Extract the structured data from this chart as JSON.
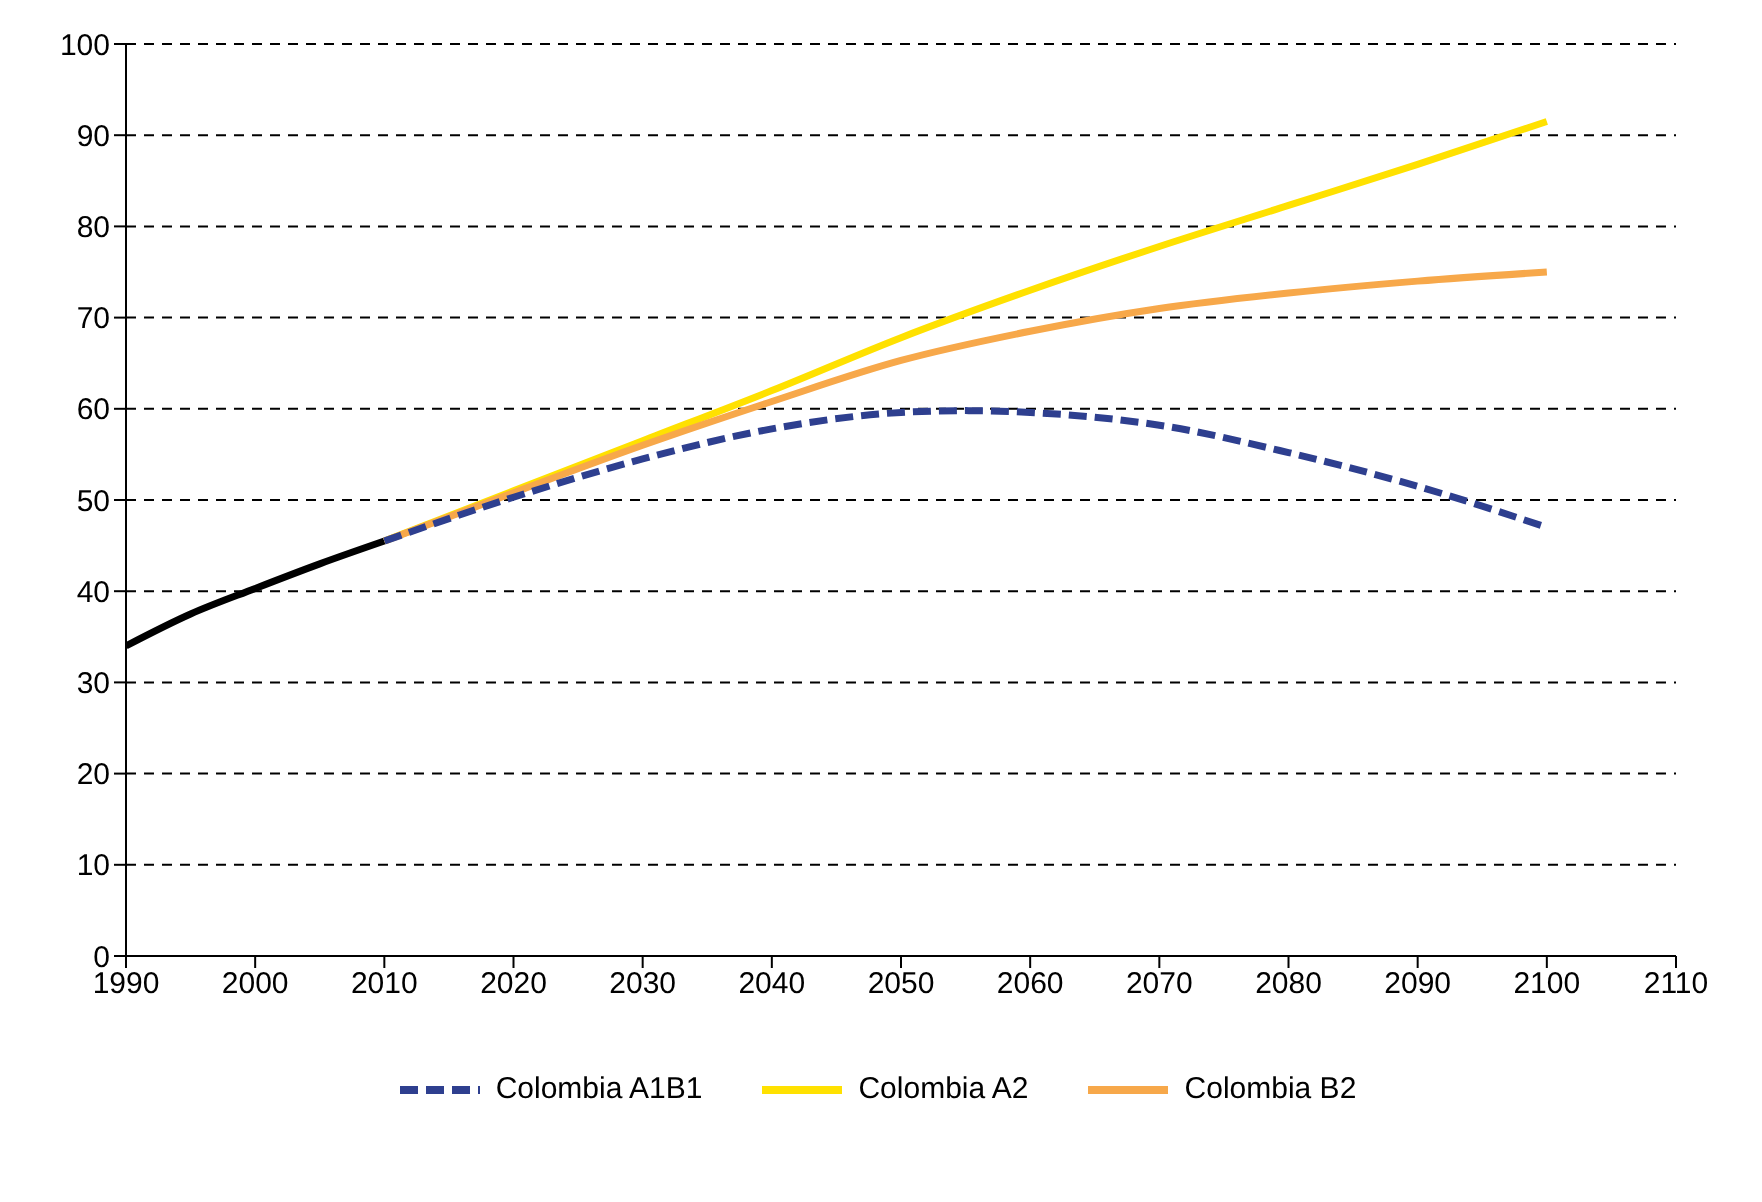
{
  "chart_data": {
    "type": "line",
    "xlim": [
      1990,
      2110
    ],
    "xticks": [
      1990,
      2000,
      2010,
      2020,
      2030,
      2040,
      2050,
      2060,
      2070,
      2080,
      2090,
      2100,
      2110
    ],
    "ylim": [
      0,
      100
    ],
    "yticks": [
      0,
      10,
      20,
      30,
      40,
      50,
      60,
      70,
      80,
      90,
      100
    ],
    "grid": "y",
    "legend": "bottom",
    "marker": "none",
    "series": [
      {
        "color": "#000000",
        "line_style": "solid",
        "x": [
          1990,
          1995,
          2000,
          2005,
          2010
        ],
        "values": [
          34,
          37.5,
          40.3,
          43,
          45.5
        ]
      },
      {
        "name": "Colombia A1B1",
        "color": "#2e3f8f",
        "line_style": "dashed",
        "x": [
          2010,
          2020,
          2030,
          2040,
          2050,
          2055,
          2060,
          2070,
          2080,
          2090,
          2100
        ],
        "values": [
          45.5,
          50.3,
          54.5,
          57.8,
          59.6,
          59.8,
          59.6,
          58.2,
          55.2,
          51.5,
          47
        ]
      },
      {
        "name": "Colombia A2",
        "color": "#ffe100",
        "line_style": "solid",
        "x": [
          2010,
          2020,
          2030,
          2040,
          2050,
          2060,
          2070,
          2080,
          2090,
          2100
        ],
        "values": [
          45.5,
          51,
          56.5,
          62,
          67.8,
          73,
          77.8,
          82.3,
          86.8,
          91.5
        ]
      },
      {
        "name": "Colombia B2",
        "color": "#f7a84a",
        "line_style": "solid",
        "x": [
          2010,
          2020,
          2030,
          2040,
          2050,
          2060,
          2070,
          2080,
          2090,
          2100
        ],
        "values": [
          45.5,
          50.8,
          56,
          60.8,
          65.3,
          68.5,
          71,
          72.7,
          74,
          75
        ]
      }
    ]
  }
}
